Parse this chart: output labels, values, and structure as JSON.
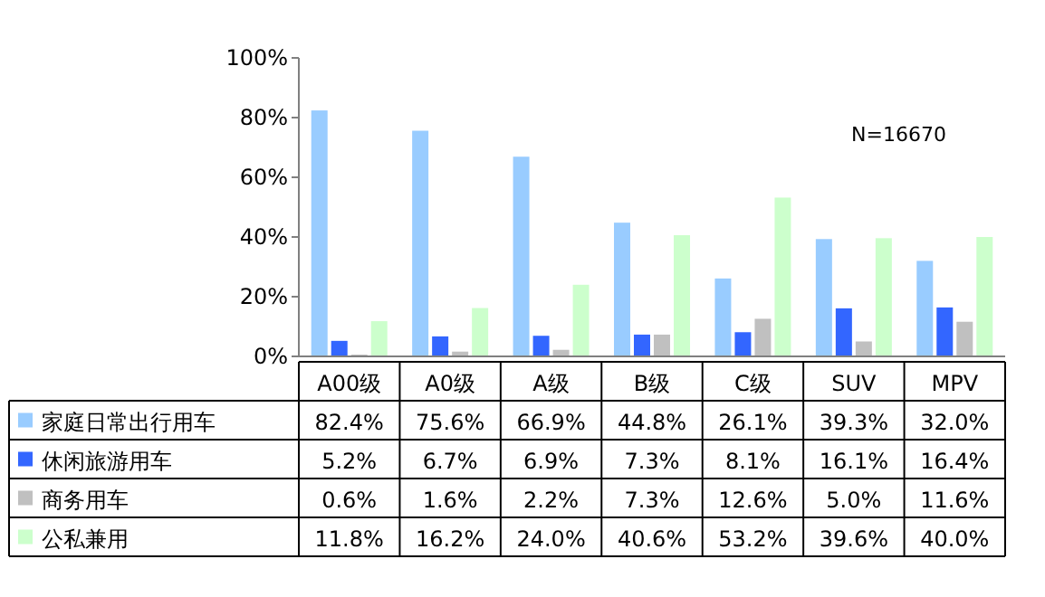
{
  "chart_data": {
    "type": "bar",
    "categories": [
      "A00级",
      "A0级",
      "A级",
      "B级",
      "C级",
      "SUV",
      "MPV"
    ],
    "ylim": [
      0,
      100
    ],
    "yticks": [
      {
        "value": 0,
        "label": "0%"
      },
      {
        "value": 20,
        "label": "20%"
      },
      {
        "value": 40,
        "label": "40%"
      },
      {
        "value": 60,
        "label": "60%"
      },
      {
        "value": 80,
        "label": "80%"
      },
      {
        "value": 100,
        "label": "100%"
      }
    ],
    "grid": false,
    "legend": "bottom",
    "annotations": [
      "N=16670"
    ],
    "series": [
      {
        "name": "家庭日常出行用车",
        "color": "#99ccff",
        "values": [
          82.4,
          75.6,
          66.9,
          44.8,
          26.1,
          39.3,
          32.0
        ],
        "value_labels": [
          "82.4%",
          "75.6%",
          "66.9%",
          "44.8%",
          "26.1%",
          "39.3%",
          "32.0%"
        ]
      },
      {
        "name": "休闲旅游用车",
        "color": "#3366ff",
        "values": [
          5.2,
          6.7,
          6.9,
          7.3,
          8.1,
          16.1,
          16.4
        ],
        "value_labels": [
          "5.2%",
          "6.7%",
          "6.9%",
          "7.3%",
          "8.1%",
          "16.1%",
          "16.4%"
        ]
      },
      {
        "name": "商务用车",
        "color": "#c0c0c0",
        "values": [
          0.6,
          1.6,
          2.2,
          7.3,
          12.6,
          5.0,
          11.6
        ],
        "value_labels": [
          "0.6%",
          "1.6%",
          "2.2%",
          "7.3%",
          "12.6%",
          "5.0%",
          "11.6%"
        ]
      },
      {
        "name": "公私兼用",
        "color": "#ccffcc",
        "values": [
          11.8,
          16.2,
          24.0,
          40.6,
          53.2,
          39.6,
          40.0
        ],
        "value_labels": [
          "11.8%",
          "16.2%",
          "24.0%",
          "40.6%",
          "53.2%",
          "39.6%",
          "40.0%"
        ]
      }
    ]
  }
}
